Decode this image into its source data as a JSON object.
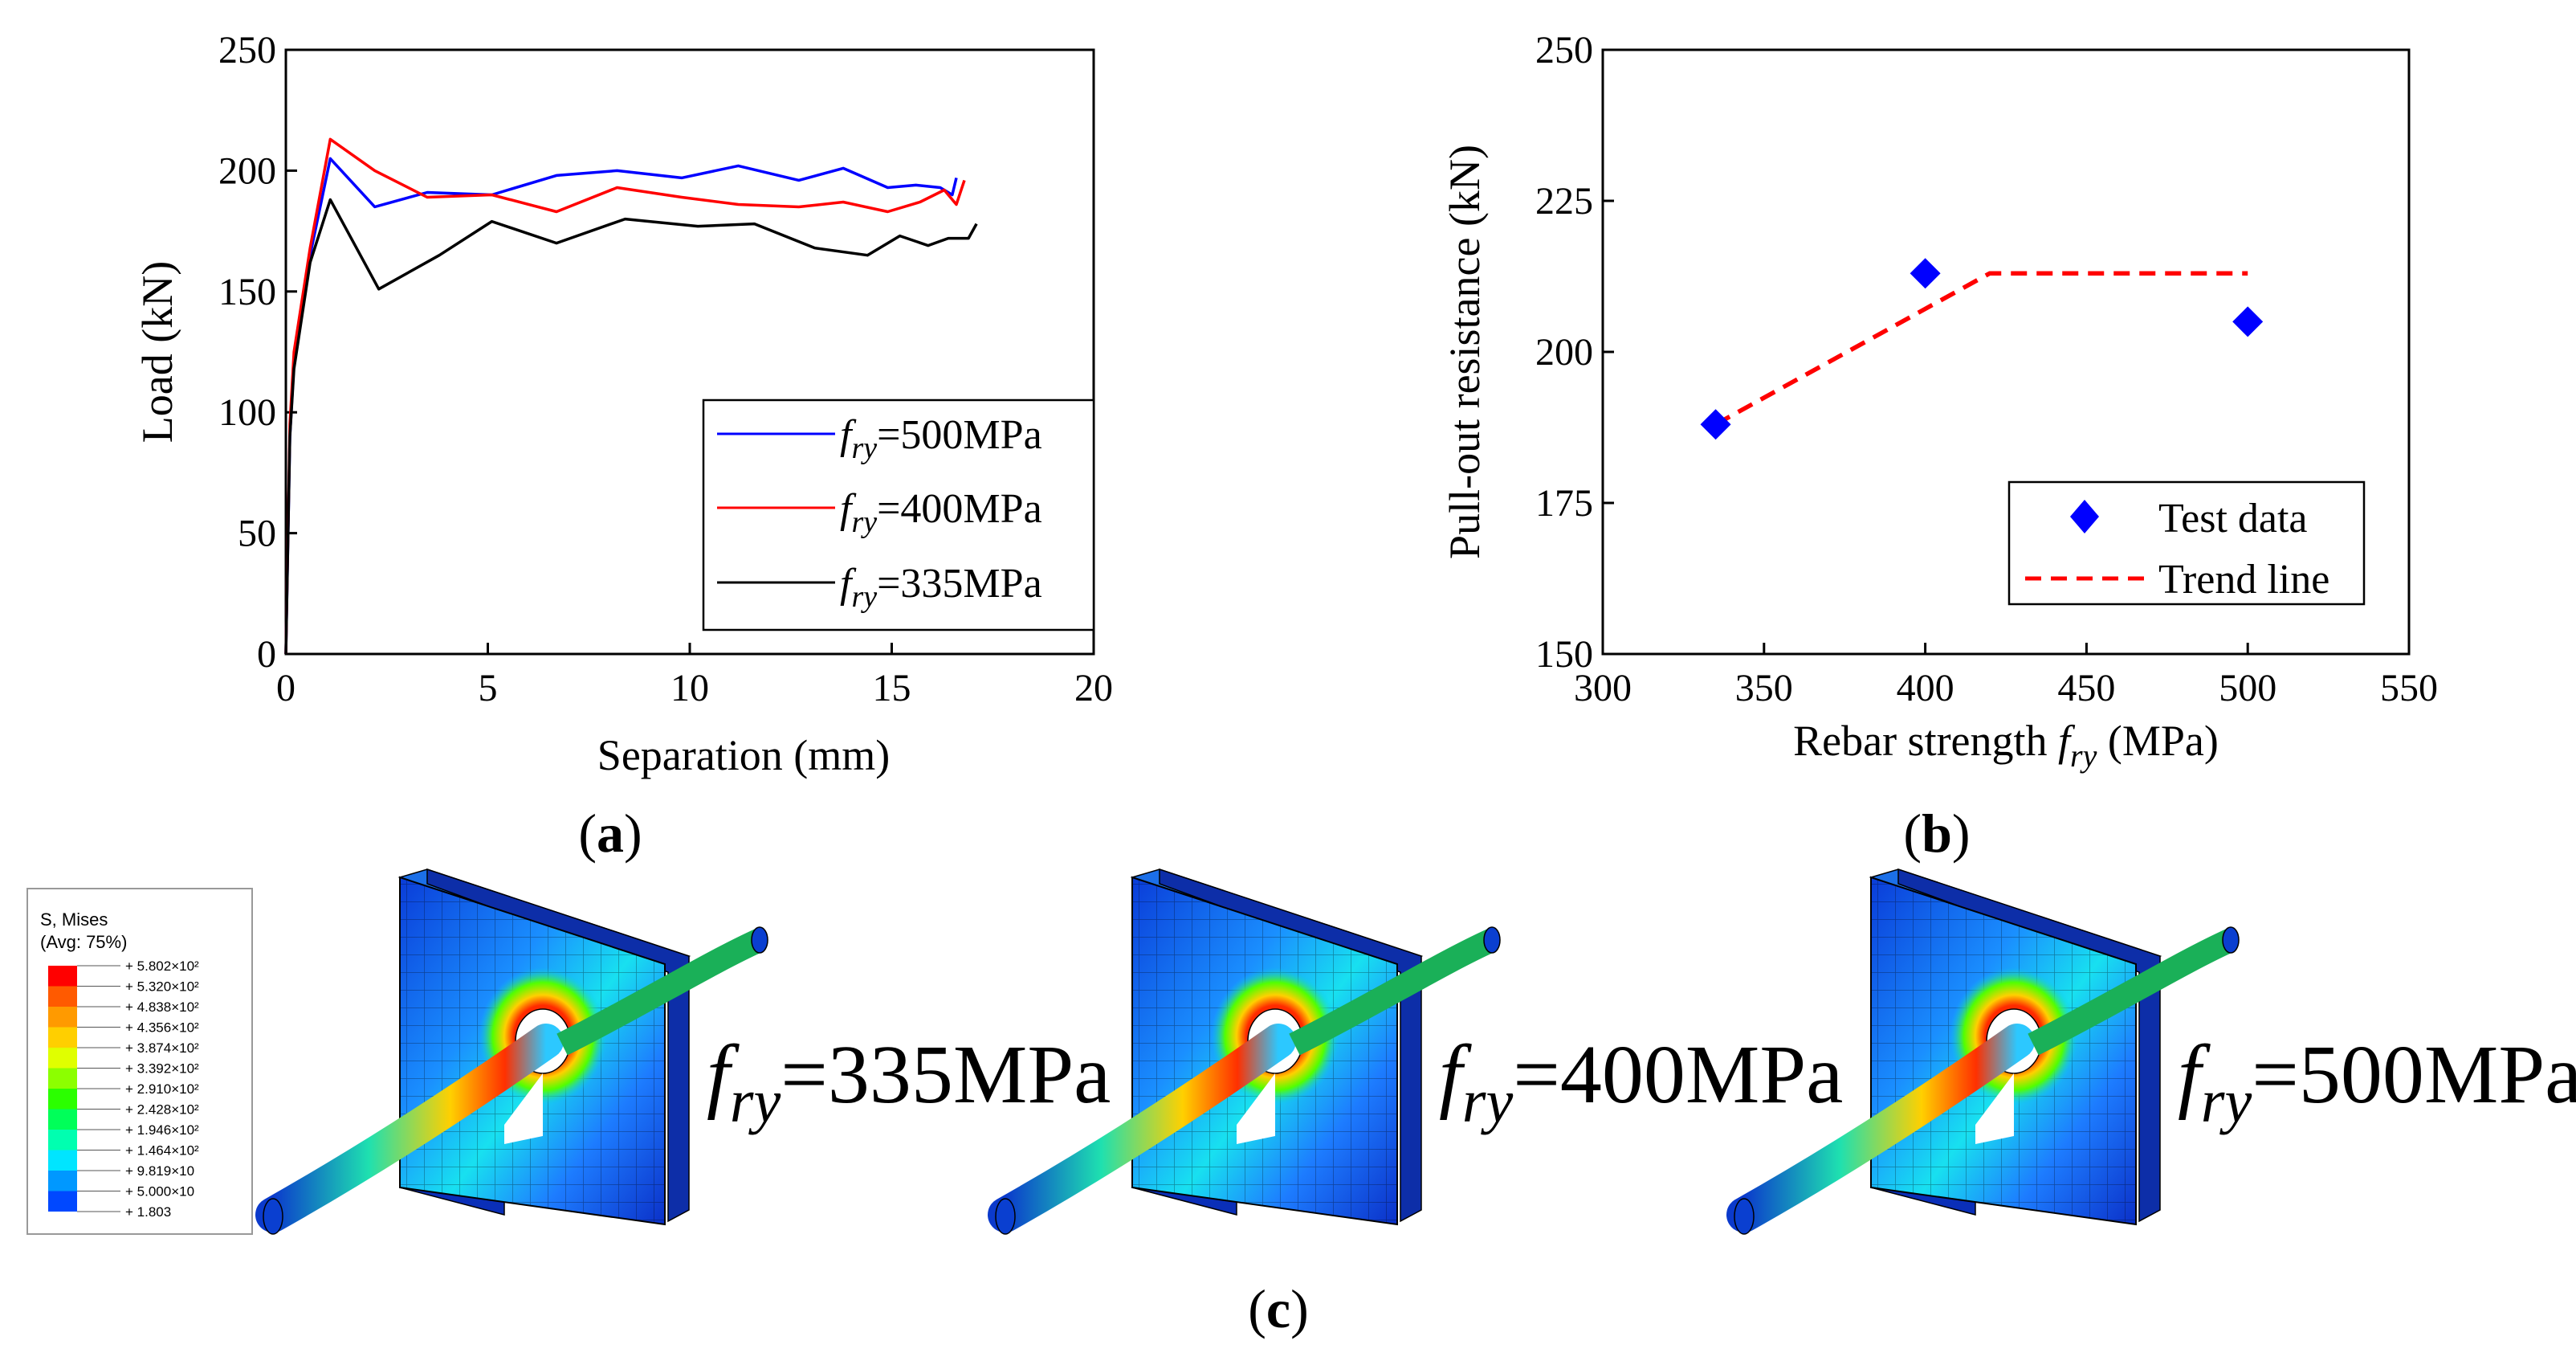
{
  "chart_data": [
    {
      "type": "line",
      "panel": "a",
      "xlabel": "Separation (mm)",
      "ylabel": "Load (kN)",
      "xlim": [
        0,
        20
      ],
      "ylim": [
        0,
        250
      ],
      "xticks": [
        "0",
        "5",
        "10",
        "15",
        "20"
      ],
      "yticks": [
        "0",
        "50",
        "100",
        "150",
        "200",
        "250"
      ],
      "legend_position": "lower-right",
      "series": [
        {
          "name": "500MPa",
          "label_prefix": "f",
          "label_sub": "ry",
          "label_suffix": "=500MPa",
          "color": "#0000ff",
          "x": [
            0,
            0.1,
            0.2,
            0.6,
            1.1,
            2.2,
            3.5,
            5.1,
            6.7,
            8.2,
            9.8,
            11.2,
            12.7,
            13.8,
            14.9,
            15.6,
            16.2,
            16.5,
            16.6
          ],
          "y": [
            0,
            90,
            120,
            165,
            205,
            185,
            191,
            190,
            198,
            200,
            197,
            202,
            196,
            201,
            193,
            194,
            193,
            190,
            197
          ]
        },
        {
          "name": "400MPa",
          "label_prefix": "f",
          "label_sub": "ry",
          "label_suffix": "=400MPa",
          "color": "#ff0000",
          "x": [
            0,
            0.1,
            0.2,
            0.6,
            1.1,
            2.2,
            3.5,
            5.1,
            6.7,
            8.2,
            9.8,
            11.2,
            12.7,
            13.8,
            14.9,
            15.7,
            16.3,
            16.6,
            16.8
          ],
          "y": [
            0,
            95,
            125,
            168,
            213,
            200,
            189,
            190,
            183,
            193,
            189,
            186,
            185,
            187,
            183,
            187,
            192,
            186,
            196
          ]
        },
        {
          "name": "335MPa",
          "label_prefix": "f",
          "label_sub": "ry",
          "label_suffix": "=335MPa",
          "color": "#000000",
          "x": [
            0,
            0.1,
            0.2,
            0.6,
            1.1,
            2.3,
            3.8,
            5.1,
            6.7,
            8.4,
            10.2,
            11.6,
            13.1,
            14.4,
            15.2,
            15.9,
            16.4,
            16.9,
            17.1
          ],
          "y": [
            0,
            90,
            118,
            162,
            188,
            151,
            165,
            179,
            170,
            180,
            177,
            178,
            168,
            165,
            173,
            169,
            172,
            172,
            178
          ]
        }
      ]
    },
    {
      "type": "scatter",
      "panel": "b",
      "xlabel_prefix": "Rebar strength ",
      "xlabel_var": "f",
      "xlabel_sub": "ry",
      "xlabel_suffix": " (MPa)",
      "ylabel": "Pull-out resistance (kN)",
      "xlim": [
        300,
        550
      ],
      "ylim": [
        150,
        250
      ],
      "xticks": [
        "300",
        "350",
        "400",
        "450",
        "500",
        "550"
      ],
      "yticks": [
        "150",
        "175",
        "200",
        "225",
        "250"
      ],
      "legend_position": "lower-right",
      "series": [
        {
          "name": "Test data",
          "kind": "marker",
          "color": "#0000ff",
          "x": [
            335,
            400,
            500
          ],
          "y": [
            188,
            213,
            205
          ]
        },
        {
          "name": "Trend line",
          "kind": "dashed-line",
          "color": "#ff0000",
          "x": [
            335,
            420,
            500
          ],
          "y": [
            188,
            213,
            213
          ]
        }
      ]
    }
  ],
  "panel_labels": {
    "a": "a",
    "b": "b",
    "c": "c"
  },
  "contour_legend": {
    "title_line1": "S, Mises",
    "title_line2": "(Avg: 75%)",
    "levels": [
      "+ 5.802×10²",
      "+ 5.320×10²",
      "+ 4.838×10²",
      "+ 4.356×10²",
      "+ 3.874×10²",
      "+ 3.392×10²",
      "+ 2.910×10²",
      "+ 2.428×10²",
      "+ 1.946×10²",
      "+ 1.464×10²",
      "+ 9.819×10",
      "+ 5.000×10",
      "+ 1.803"
    ],
    "colors": [
      "#ff0000",
      "#ff5a00",
      "#ff9a00",
      "#ffcf00",
      "#e0ff00",
      "#8cff00",
      "#2bff00",
      "#00ff59",
      "#00ffb0",
      "#00e5ff",
      "#0098ff",
      "#0048ff",
      "#0000ff"
    ]
  },
  "models": [
    {
      "var": "f",
      "sub": "ry",
      "suffix": "=335MPa"
    },
    {
      "var": "f",
      "sub": "ry",
      "suffix": "=400MPa"
    },
    {
      "var": "f",
      "sub": "ry",
      "suffix": "=500MPa"
    }
  ]
}
